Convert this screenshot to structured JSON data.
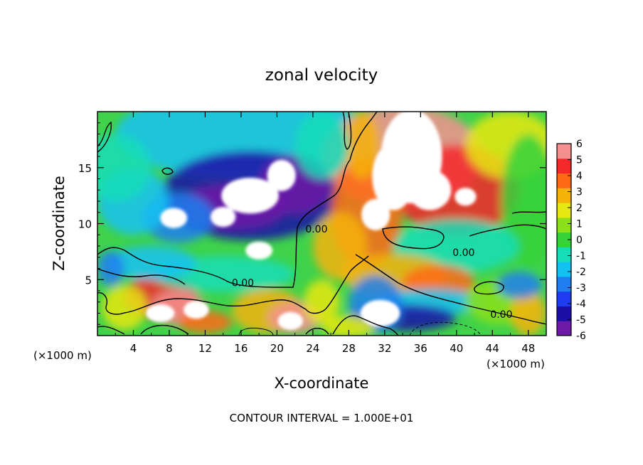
{
  "chart_data": {
    "type": "heatmap",
    "title": "zonal velocity",
    "xlabel": "X-coordinate",
    "ylabel": "Z-coordinate",
    "x_unit_left": "(×1000 m)",
    "x_unit_right": "(×1000 m)",
    "footer": "CONTOUR INTERVAL = 1.000E+01",
    "xlim": [
      0,
      50
    ],
    "ylim": [
      0,
      20
    ],
    "x_ticks": [
      "4",
      "8",
      "12",
      "16",
      "20",
      "24",
      "28",
      "32",
      "36",
      "40",
      "44",
      "48"
    ],
    "x_tick_values": [
      4,
      8,
      12,
      16,
      20,
      24,
      28,
      32,
      36,
      40,
      44,
      48
    ],
    "y_ticks": [
      "5",
      "10",
      "15"
    ],
    "y_tick_values": [
      5,
      10,
      15
    ],
    "colorbar": {
      "range": [
        -6,
        6
      ],
      "ticks": [
        "6",
        "5",
        "4",
        "3",
        "2",
        "1",
        "0",
        "-1",
        "-2",
        "-3",
        "-4",
        "-5",
        "-6"
      ],
      "tick_values": [
        6,
        5,
        4,
        3,
        2,
        1,
        0,
        -1,
        -2,
        -3,
        -4,
        -5,
        -6
      ]
    },
    "contour_labels": [
      {
        "text": "0.00",
        "x": 24.4,
        "y": 9.2
      },
      {
        "text": "0.00",
        "x": 16.2,
        "y": 4.4
      },
      {
        "text": "0.00",
        "x": 40.8,
        "y": 7.1
      },
      {
        "text": "0.00",
        "x": 45.0,
        "y": 1.6
      }
    ],
    "field_blobs": [
      {
        "x": 16,
        "y": 18,
        "rx": 14,
        "ry": 4,
        "v": -1.5
      },
      {
        "x": 17,
        "y": 12.5,
        "rx": 10,
        "ry": 4,
        "v": -4.5
      },
      {
        "x": 15,
        "y": 11.5,
        "rx": 6,
        "ry": 2,
        "v": -6.5
      },
      {
        "x": 22,
        "y": 13.5,
        "rx": 4,
        "ry": 2.6,
        "v": -6.5
      },
      {
        "x": 9,
        "y": 10.5,
        "rx": 4,
        "ry": 2.2,
        "v": -3
      },
      {
        "x": 4,
        "y": 12,
        "rx": 4,
        "ry": 3,
        "v": -2
      },
      {
        "x": 2,
        "y": 15,
        "rx": 4,
        "ry": 3,
        "v": -0.5
      },
      {
        "x": 34,
        "y": 16,
        "rx": 9,
        "ry": 4.5,
        "v": 6.5
      },
      {
        "x": 40,
        "y": 13,
        "rx": 7,
        "ry": 4,
        "v": 5
      },
      {
        "x": 30,
        "y": 11,
        "rx": 4,
        "ry": 5,
        "v": 4
      },
      {
        "x": 27,
        "y": 8,
        "rx": 3,
        "ry": 3,
        "v": 3
      },
      {
        "x": 46,
        "y": 17,
        "rx": 5,
        "ry": 3,
        "v": 2
      },
      {
        "x": 48,
        "y": 12,
        "rx": 3,
        "ry": 6,
        "v": 0.5
      },
      {
        "x": 40,
        "y": 8,
        "rx": 7,
        "ry": 2.4,
        "v": -0.6
      },
      {
        "x": 33,
        "y": 5.5,
        "rx": 6,
        "ry": 1.8,
        "v": 3.5
      },
      {
        "x": 38,
        "y": 4.8,
        "rx": 4,
        "ry": 1.5,
        "v": 4.5
      },
      {
        "x": 37,
        "y": 3,
        "rx": 6,
        "ry": 1.2,
        "v": -1.5
      },
      {
        "x": 34,
        "y": 1.6,
        "rx": 6,
        "ry": 1.2,
        "v": -4.5
      },
      {
        "x": 31,
        "y": 2.8,
        "rx": 3,
        "ry": 2.6,
        "v": -3
      },
      {
        "x": 45,
        "y": 3,
        "rx": 4,
        "ry": 2,
        "v": 1
      },
      {
        "x": 48,
        "y": 2,
        "rx": 2,
        "ry": 2,
        "v": 3
      },
      {
        "x": 47,
        "y": 4.5,
        "rx": 2.5,
        "ry": 1.2,
        "v": -2.5
      },
      {
        "x": 7,
        "y": 3.5,
        "rx": 4,
        "ry": 2,
        "v": 5
      },
      {
        "x": 9,
        "y": 2.5,
        "rx": 3,
        "ry": 1.6,
        "v": 6.5
      },
      {
        "x": 3,
        "y": 2.5,
        "rx": 2.5,
        "ry": 2,
        "v": 2.5
      },
      {
        "x": 12,
        "y": 1.2,
        "rx": 3,
        "ry": 1,
        "v": 4
      },
      {
        "x": 19,
        "y": 2.2,
        "rx": 4,
        "ry": 2,
        "v": 3
      },
      {
        "x": 22,
        "y": 1.6,
        "rx": 3,
        "ry": 1.4,
        "v": 6.5
      },
      {
        "x": 25,
        "y": 3,
        "rx": 2,
        "ry": 2,
        "v": 2
      },
      {
        "x": 14,
        "y": 5.5,
        "rx": 8,
        "ry": 1.6,
        "v": -0.4
      },
      {
        "x": 6,
        "y": 6.5,
        "rx": 5,
        "ry": 1.5,
        "v": -1.2
      },
      {
        "x": 1.5,
        "y": 6,
        "rx": 1.5,
        "ry": 1.6,
        "v": -3
      },
      {
        "x": 28,
        "y": 0.8,
        "rx": 3,
        "ry": 1,
        "v": 2
      },
      {
        "x": 29.5,
        "y": 17,
        "rx": 2,
        "ry": 3,
        "v": 3
      },
      {
        "x": 25,
        "y": 17,
        "rx": 3,
        "ry": 3,
        "v": -0.3
      }
    ],
    "white_regions": [
      {
        "x": 35,
        "y": 16,
        "rx": 3.4,
        "ry": 4.2
      },
      {
        "x": 33,
        "y": 14.2,
        "rx": 2.4,
        "ry": 3
      },
      {
        "x": 37,
        "y": 13,
        "rx": 2.4,
        "ry": 1.8
      },
      {
        "x": 31,
        "y": 10.8,
        "rx": 1.6,
        "ry": 1.4
      },
      {
        "x": 41,
        "y": 12.4,
        "rx": 1.2,
        "ry": 0.8
      },
      {
        "x": 17,
        "y": 12.5,
        "rx": 3.2,
        "ry": 1.6
      },
      {
        "x": 20.5,
        "y": 14.3,
        "rx": 1.6,
        "ry": 1.4
      },
      {
        "x": 14,
        "y": 10.6,
        "rx": 1.4,
        "ry": 0.9
      },
      {
        "x": 8.5,
        "y": 10.5,
        "rx": 1.5,
        "ry": 0.9
      },
      {
        "x": 18,
        "y": 7.6,
        "rx": 1.5,
        "ry": 0.8
      },
      {
        "x": 31.5,
        "y": 2.0,
        "rx": 2.2,
        "ry": 1.2
      },
      {
        "x": 7,
        "y": 2.0,
        "rx": 1.6,
        "ry": 0.8
      },
      {
        "x": 11,
        "y": 2.3,
        "rx": 1.4,
        "ry": 0.8
      },
      {
        "x": 21.5,
        "y": 1.3,
        "rx": 1.4,
        "ry": 0.8
      }
    ]
  }
}
